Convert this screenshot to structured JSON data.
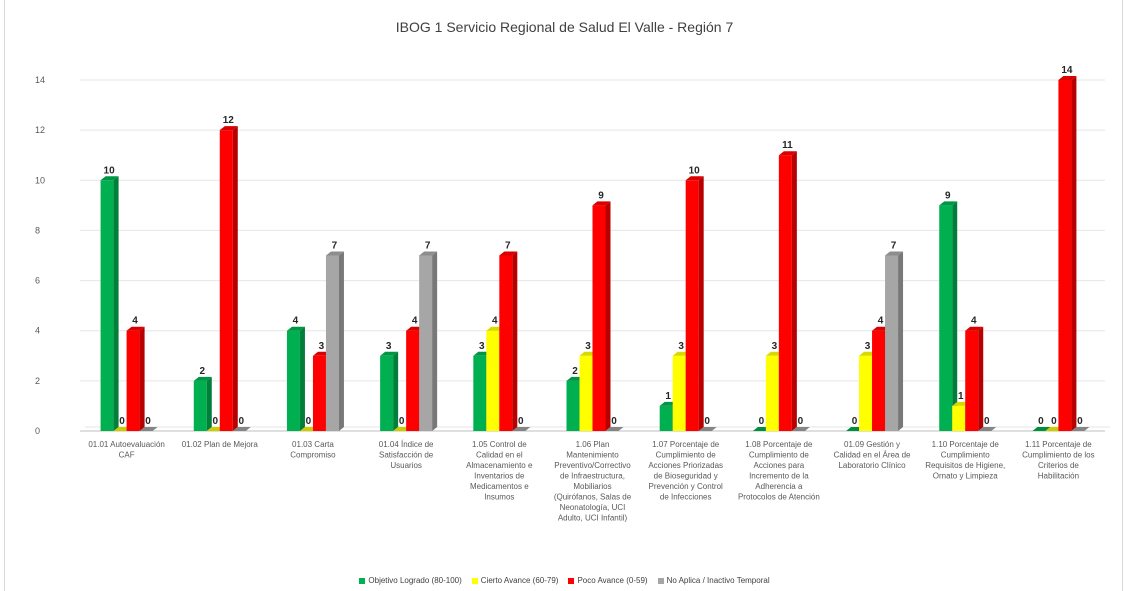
{
  "chart_data": {
    "type": "bar",
    "title": "IBOG 1 Servicio Regional de Salud El Valle - Región 7",
    "xlabel": "",
    "ylabel": "",
    "ylim": [
      0,
      14
    ],
    "yticks": [
      0,
      2,
      4,
      6,
      8,
      10,
      12,
      14
    ],
    "grid": true,
    "legend_position": "bottom",
    "categories": [
      [
        "01.01 Autoevaluación",
        "CAF"
      ],
      [
        "01.02 Plan de Mejora"
      ],
      [
        "01.03 Carta",
        "Compromiso"
      ],
      [
        "01.04 Índice de",
        "Satisfacción de",
        "Usuarios"
      ],
      [
        "1.05 Control de",
        "Calidad en el",
        "Almacenamiento e",
        "Inventarios de",
        "Medicamentos e",
        "Insumos"
      ],
      [
        "1.06 Plan",
        "Mantenimiento",
        "Preventivo/Correctivo",
        "de Infraestructura,",
        "Mobiliarios",
        "(Quirófanos, Salas de",
        "Neonatología, UCI",
        "Adulto, UCI Infantil)"
      ],
      [
        "1.07 Porcentaje de",
        "Cumplimiento de",
        "Acciones Priorizadas",
        "de Bioseguridad y",
        "Prevención y Control",
        "de Infecciones"
      ],
      [
        "1.08 Porcentaje de",
        "Cumplimiento de",
        "Acciones para",
        "Incremento de la",
        "Adherencia a",
        "Protocolos de Atención"
      ],
      [
        "01.09 Gestión y",
        "Calidad en el Área de",
        "Laboratorio Clínico"
      ],
      [
        "1.10 Porcentaje de",
        "Cumplimiento",
        "Requisitos de Higiene,",
        "Ornato y Limpieza"
      ],
      [
        "1.11 Porcentaje de",
        "Cumplimiento de los",
        "Criterios de",
        "Habilitación"
      ]
    ],
    "series": [
      {
        "name": "Objetivo Logrado (80-100)",
        "color": "#00b050",
        "values": [
          10,
          2,
          4,
          3,
          3,
          2,
          1,
          0,
          0,
          9,
          0
        ]
      },
      {
        "name": "Cierto Avance (60-79)",
        "color": "#ffff00",
        "values": [
          0,
          0,
          0,
          0,
          4,
          3,
          3,
          3,
          3,
          1,
          0
        ]
      },
      {
        "name": "Poco Avance (0-59)",
        "color": "#ff0000",
        "values": [
          4,
          12,
          3,
          4,
          7,
          9,
          10,
          11,
          4,
          4,
          14
        ]
      },
      {
        "name": "No Aplica / Inactivo Temporal",
        "color": "#a6a6a6",
        "values": [
          0,
          0,
          7,
          7,
          0,
          0,
          0,
          0,
          7,
          0,
          0
        ]
      }
    ]
  }
}
